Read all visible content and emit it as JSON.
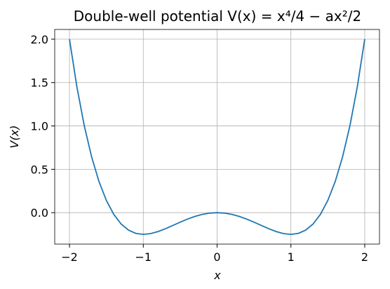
{
  "chart_data": {
    "type": "line",
    "title": "Double-well potential V(x) = x⁴/4 − ax²/2",
    "x_label": "x",
    "y_label": "V(x)",
    "x": [
      -2.0,
      -1.9,
      -1.8,
      -1.7,
      -1.6,
      -1.5,
      -1.4,
      -1.3,
      -1.2,
      -1.1,
      -1.0,
      -0.9,
      -0.8,
      -0.7,
      -0.6,
      -0.5,
      -0.4,
      -0.3,
      -0.2,
      -0.1,
      0.0,
      0.1,
      0.2,
      0.3,
      0.4,
      0.5,
      0.6,
      0.7,
      0.8,
      0.9,
      1.0,
      1.1,
      1.2,
      1.3,
      1.4,
      1.5,
      1.6,
      1.7,
      1.8,
      1.9,
      2.0
    ],
    "series": [
      {
        "name": "V(x)",
        "color": "#1f77b4",
        "values": [
          2.0,
          1.453,
          1.0044,
          0.643,
          0.3584,
          0.1406,
          -0.0196,
          -0.131,
          -0.2016,
          -0.239,
          -0.25,
          -0.241,
          -0.2176,
          -0.185,
          -0.1476,
          -0.1094,
          -0.0736,
          -0.043,
          -0.0196,
          -0.005,
          0.0,
          -0.005,
          -0.0196,
          -0.043,
          -0.0736,
          -0.1094,
          -0.1476,
          -0.185,
          -0.2176,
          -0.241,
          -0.25,
          -0.239,
          -0.2016,
          -0.131,
          -0.0196,
          0.1406,
          0.3584,
          0.643,
          1.0044,
          1.453,
          2.0
        ]
      }
    ],
    "xlim": [
      -2.2,
      2.2
    ],
    "ylim": [
      -0.3625,
      2.1125
    ],
    "xticks": [
      {
        "value": -2,
        "label": "−2"
      },
      {
        "value": -1,
        "label": "−1"
      },
      0,
      1,
      2
    ],
    "yticks": [
      {
        "value": 0,
        "label": "0.0"
      },
      0.5,
      {
        "value": 1,
        "label": "1.0"
      },
      1.5,
      {
        "value": 2,
        "label": "2.0"
      }
    ],
    "grid": true
  }
}
